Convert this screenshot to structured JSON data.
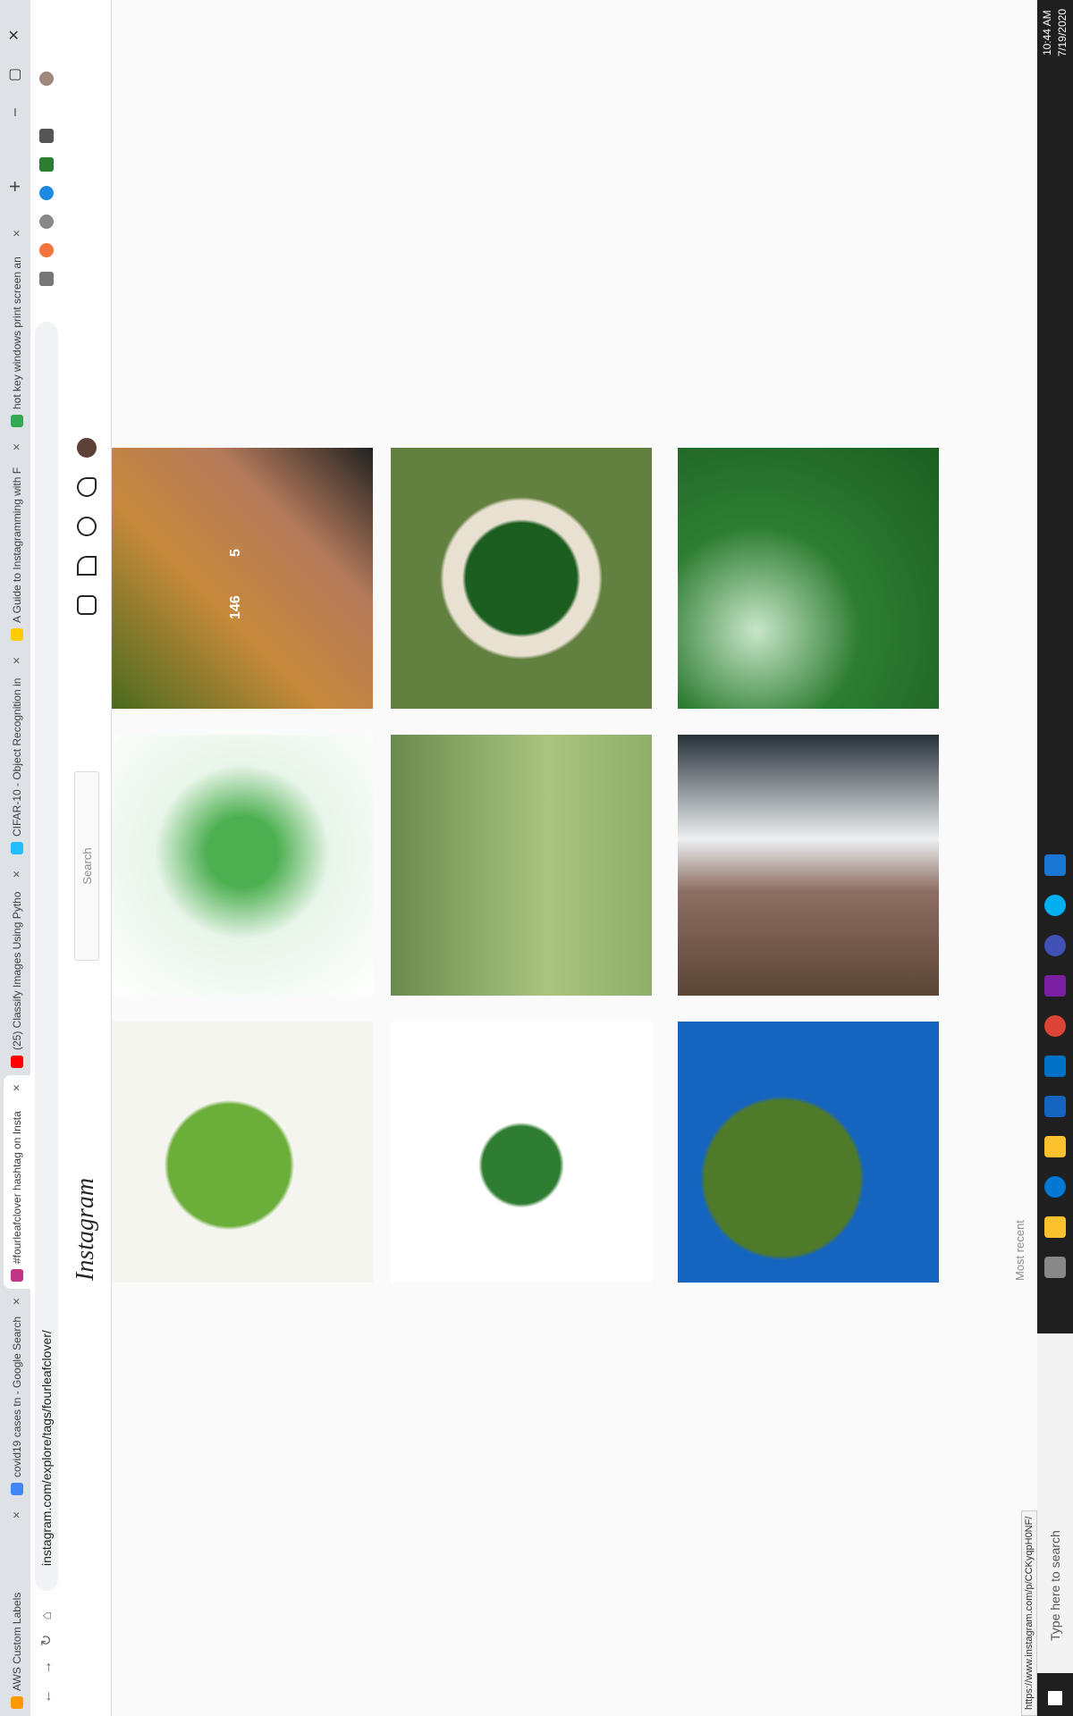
{
  "tabs": [
    "AWS Custom Labels",
    "covid19 cases tn - Google Search",
    "#fourleafclover hashtag on Insta",
    "(25) Classify Images Using Pytho",
    "CIFAR-10 - Object Recognition in",
    "A Guide to Instagramming with F",
    "hot key windows print screen an"
  ],
  "browser": {
    "url": "instagram.com/explore/tags/fourleafclover/",
    "status_url": "https://www.instagram.com/p/CCKyqpH0NF/"
  },
  "instagram": {
    "logo": "Instagram",
    "search_placeholder": "Search",
    "section": "Most recent"
  },
  "posts": [
    {
      "likes": "146",
      "comments": "5"
    }
  ],
  "taskbar": {
    "search": "Type here to search",
    "time": "10:44 AM",
    "date": "7/19/2020"
  }
}
